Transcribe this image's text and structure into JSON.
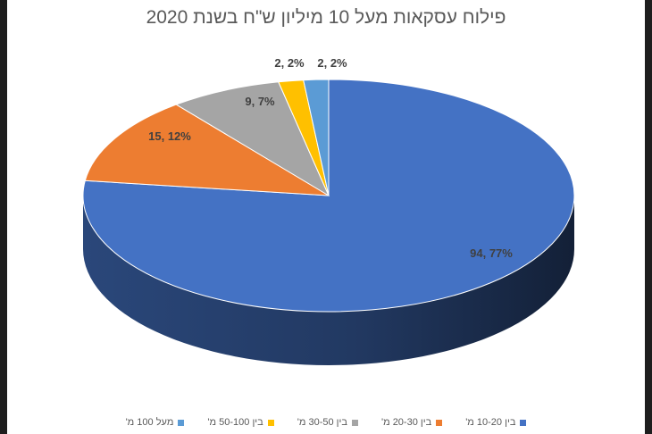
{
  "chart_data": {
    "type": "pie",
    "title": "פילוח עסקאות מעל 10 מיליון ש\"ח בשנת 2020",
    "slices": [
      {
        "name": "בין 10-20 מ'",
        "value": 94,
        "percent": 77,
        "label": "94, 77%",
        "color": "#4472C4"
      },
      {
        "name": "בין 20-30 מ'",
        "value": 15,
        "percent": 12,
        "label": "15, 12%",
        "color": "#ED7D31"
      },
      {
        "name": "בין 30-50 מ'",
        "value": 9,
        "percent": 7,
        "label": "9, 7%",
        "color": "#A5A5A5"
      },
      {
        "name": "בין 50-100 מ'",
        "value": 2,
        "percent": 2,
        "label": "2, 2%",
        "color": "#FFC000"
      },
      {
        "name": "מעל 100 מ'",
        "value": 2,
        "percent": 2,
        "label": "2, 2%",
        "color": "#5B9BD5"
      }
    ],
    "legend_position": "bottom"
  }
}
